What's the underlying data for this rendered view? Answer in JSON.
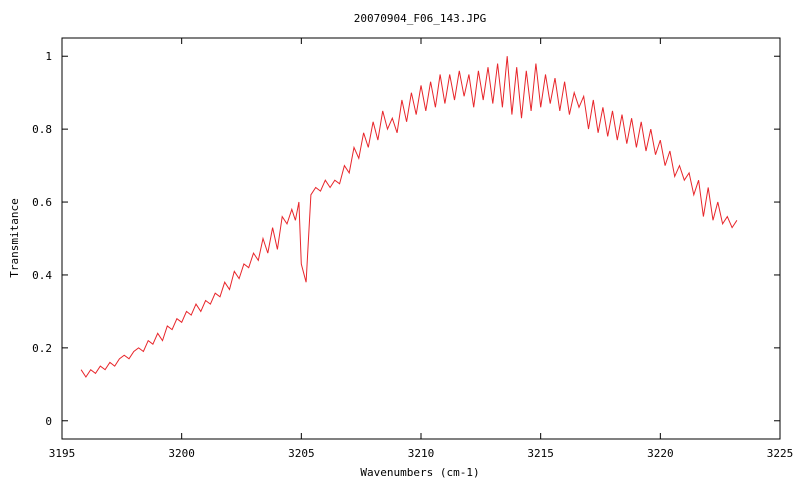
{
  "chart_data": {
    "type": "line",
    "title": "20070904_F06_143.JPG",
    "xlabel": "Wavenumbers (cm-1)",
    "ylabel": "Transmitance",
    "xlim": [
      3195,
      3225
    ],
    "ylim": [
      -0.05,
      1.05
    ],
    "grid": false,
    "x_ticks": [
      "3195",
      "3200",
      "3205",
      "3210",
      "3215",
      "3220",
      "3225"
    ],
    "y_ticks": [
      "0",
      "0.2",
      "0.4",
      "0.6",
      "0.8",
      "1"
    ],
    "series_color": "#e8262b",
    "x": [
      3195.8,
      3196.0,
      3196.2,
      3196.4,
      3196.6,
      3196.8,
      3197.0,
      3197.2,
      3197.4,
      3197.6,
      3197.8,
      3198.0,
      3198.2,
      3198.4,
      3198.6,
      3198.8,
      3199.0,
      3199.2,
      3199.4,
      3199.6,
      3199.8,
      3200.0,
      3200.2,
      3200.4,
      3200.6,
      3200.8,
      3201.0,
      3201.2,
      3201.4,
      3201.6,
      3201.8,
      3202.0,
      3202.2,
      3202.4,
      3202.6,
      3202.8,
      3203.0,
      3203.2,
      3203.4,
      3203.6,
      3203.8,
      3204.0,
      3204.2,
      3204.4,
      3204.6,
      3204.75,
      3204.9,
      3205.0,
      3205.2,
      3205.4,
      3205.6,
      3205.8,
      3206.0,
      3206.2,
      3206.4,
      3206.6,
      3206.8,
      3207.0,
      3207.2,
      3207.4,
      3207.6,
      3207.8,
      3208.0,
      3208.2,
      3208.4,
      3208.6,
      3208.8,
      3209.0,
      3209.2,
      3209.4,
      3209.6,
      3209.8,
      3210.0,
      3210.2,
      3210.4,
      3210.6,
      3210.8,
      3211.0,
      3211.2,
      3211.4,
      3211.6,
      3211.8,
      3212.0,
      3212.2,
      3212.4,
      3212.6,
      3212.8,
      3213.0,
      3213.2,
      3213.4,
      3213.6,
      3213.8,
      3214.0,
      3214.2,
      3214.4,
      3214.6,
      3214.8,
      3215.0,
      3215.2,
      3215.4,
      3215.6,
      3215.8,
      3216.0,
      3216.2,
      3216.4,
      3216.6,
      3216.8,
      3217.0,
      3217.2,
      3217.4,
      3217.6,
      3217.8,
      3218.0,
      3218.2,
      3218.4,
      3218.6,
      3218.8,
      3219.0,
      3219.2,
      3219.4,
      3219.6,
      3219.8,
      3220.0,
      3220.2,
      3220.4,
      3220.6,
      3220.8,
      3221.0,
      3221.2,
      3221.4,
      3221.6,
      3221.8,
      3222.0,
      3222.2,
      3222.4,
      3222.6,
      3222.8,
      3223.0,
      3223.2
    ],
    "y": [
      0.14,
      0.12,
      0.14,
      0.13,
      0.15,
      0.14,
      0.16,
      0.15,
      0.17,
      0.18,
      0.17,
      0.19,
      0.2,
      0.19,
      0.22,
      0.21,
      0.24,
      0.22,
      0.26,
      0.25,
      0.28,
      0.27,
      0.3,
      0.29,
      0.32,
      0.3,
      0.33,
      0.32,
      0.35,
      0.34,
      0.38,
      0.36,
      0.41,
      0.39,
      0.43,
      0.42,
      0.46,
      0.44,
      0.5,
      0.46,
      0.53,
      0.47,
      0.56,
      0.54,
      0.58,
      0.55,
      0.6,
      0.43,
      0.38,
      0.62,
      0.64,
      0.63,
      0.66,
      0.64,
      0.66,
      0.65,
      0.7,
      0.68,
      0.75,
      0.72,
      0.79,
      0.75,
      0.82,
      0.77,
      0.85,
      0.8,
      0.83,
      0.79,
      0.88,
      0.82,
      0.9,
      0.84,
      0.92,
      0.85,
      0.93,
      0.86,
      0.95,
      0.87,
      0.95,
      0.88,
      0.96,
      0.89,
      0.95,
      0.86,
      0.96,
      0.88,
      0.97,
      0.87,
      0.98,
      0.86,
      1.0,
      0.84,
      0.97,
      0.83,
      0.96,
      0.85,
      0.98,
      0.86,
      0.95,
      0.87,
      0.94,
      0.85,
      0.93,
      0.84,
      0.9,
      0.86,
      0.89,
      0.8,
      0.88,
      0.79,
      0.86,
      0.78,
      0.85,
      0.77,
      0.84,
      0.76,
      0.83,
      0.75,
      0.82,
      0.74,
      0.8,
      0.73,
      0.77,
      0.7,
      0.74,
      0.67,
      0.7,
      0.66,
      0.68,
      0.62,
      0.66,
      0.56,
      0.64,
      0.55,
      0.6,
      0.54,
      0.56,
      0.53,
      0.55
    ]
  }
}
